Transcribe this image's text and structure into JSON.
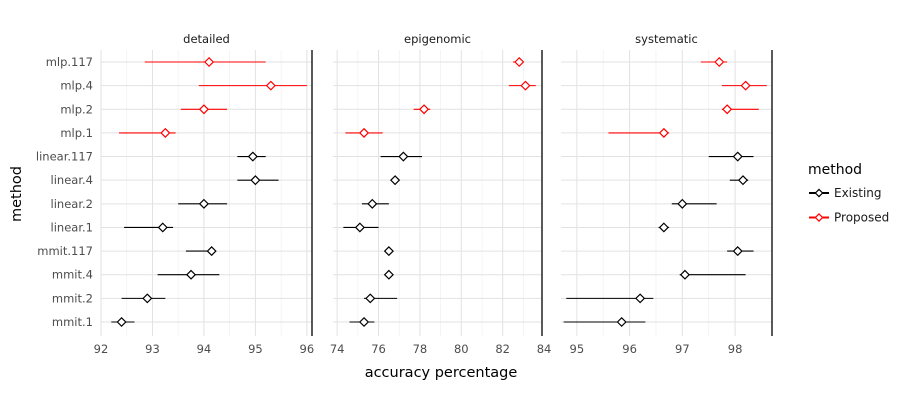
{
  "chart_data": {
    "type": "scatter",
    "title": "",
    "xlabel": "accuracy percentage",
    "ylabel": "method",
    "grid": true,
    "legend": {
      "title": "method",
      "placement": "right",
      "entries": [
        {
          "name": "Existing",
          "color": "#000000"
        },
        {
          "name": "Proposed",
          "color": "#ff0000"
        }
      ]
    },
    "categories": [
      "mmit.1",
      "mmit.2",
      "mmit.4",
      "mmit.117",
      "linear.1",
      "linear.2",
      "linear.4",
      "linear.117",
      "mlp.1",
      "mlp.2",
      "mlp.4",
      "mlp.117"
    ],
    "panels": [
      {
        "name": "detailed",
        "xlim": [
          92,
          96.1
        ],
        "xticks": [
          92,
          93,
          94,
          95,
          96
        ],
        "ref_line": 96.1,
        "points": [
          {
            "category": "mlp.117",
            "group": "Proposed",
            "mean": 94.1,
            "low": 92.85,
            "high": 95.2
          },
          {
            "category": "mlp.4",
            "group": "Proposed",
            "mean": 95.3,
            "low": 93.9,
            "high": 96.0
          },
          {
            "category": "mlp.2",
            "group": "Proposed",
            "mean": 94.0,
            "low": 93.55,
            "high": 94.45
          },
          {
            "category": "mlp.1",
            "group": "Proposed",
            "mean": 93.25,
            "low": 92.35,
            "high": 93.45
          },
          {
            "category": "linear.117",
            "group": "Existing",
            "mean": 94.95,
            "low": 94.65,
            "high": 95.2
          },
          {
            "category": "linear.4",
            "group": "Existing",
            "mean": 95.0,
            "low": 94.65,
            "high": 95.45
          },
          {
            "category": "linear.2",
            "group": "Existing",
            "mean": 94.0,
            "low": 93.5,
            "high": 94.45
          },
          {
            "category": "linear.1",
            "group": "Existing",
            "mean": 93.2,
            "low": 92.45,
            "high": 93.4
          },
          {
            "category": "mmit.117",
            "group": "Existing",
            "mean": 94.15,
            "low": 93.65,
            "high": 94.2
          },
          {
            "category": "mmit.4",
            "group": "Existing",
            "mean": 93.75,
            "low": 93.1,
            "high": 94.3
          },
          {
            "category": "mmit.2",
            "group": "Existing",
            "mean": 92.9,
            "low": 92.4,
            "high": 93.25
          },
          {
            "category": "mmit.1",
            "group": "Existing",
            "mean": 92.4,
            "low": 92.2,
            "high": 92.65
          }
        ]
      },
      {
        "name": "epigenomic",
        "xlim": [
          73.8,
          83.9
        ],
        "xticks": [
          74,
          76,
          78,
          80,
          82,
          84
        ],
        "ref_line": 83.9,
        "points": [
          {
            "category": "mlp.117",
            "group": "Proposed",
            "mean": 82.8,
            "low": 82.5,
            "high": 83.0
          },
          {
            "category": "mlp.4",
            "group": "Proposed",
            "mean": 83.1,
            "low": 82.3,
            "high": 83.6
          },
          {
            "category": "mlp.2",
            "group": "Proposed",
            "mean": 78.2,
            "low": 77.7,
            "high": 78.5
          },
          {
            "category": "mlp.1",
            "group": "Proposed",
            "mean": 75.3,
            "low": 74.4,
            "high": 76.2
          },
          {
            "category": "linear.117",
            "group": "Existing",
            "mean": 77.2,
            "low": 76.1,
            "high": 78.1
          },
          {
            "category": "linear.4",
            "group": "Existing",
            "mean": 76.8,
            "low": 76.7,
            "high": 77.0
          },
          {
            "category": "linear.2",
            "group": "Existing",
            "mean": 75.7,
            "low": 75.2,
            "high": 76.5
          },
          {
            "category": "linear.1",
            "group": "Existing",
            "mean": 75.1,
            "low": 74.3,
            "high": 76.0
          },
          {
            "category": "mmit.117",
            "group": "Existing",
            "mean": 76.5,
            "low": 76.3,
            "high": 76.7
          },
          {
            "category": "mmit.4",
            "group": "Existing",
            "mean": 76.5,
            "low": 76.3,
            "high": 76.7
          },
          {
            "category": "mmit.2",
            "group": "Existing",
            "mean": 75.6,
            "low": 75.3,
            "high": 76.9
          },
          {
            "category": "mmit.1",
            "group": "Existing",
            "mean": 75.3,
            "low": 74.6,
            "high": 75.8
          }
        ]
      },
      {
        "name": "systematic",
        "xlim": [
          94.7,
          98.7
        ],
        "xticks": [
          95,
          96,
          97,
          98
        ],
        "ref_line": 98.7,
        "points": [
          {
            "category": "mlp.117",
            "group": "Proposed",
            "mean": 97.7,
            "low": 97.35,
            "high": 97.85
          },
          {
            "category": "mlp.4",
            "group": "Proposed",
            "mean": 98.2,
            "low": 97.75,
            "high": 98.6
          },
          {
            "category": "mlp.2",
            "group": "Proposed",
            "mean": 97.85,
            "low": 97.75,
            "high": 98.45
          },
          {
            "category": "mlp.1",
            "group": "Proposed",
            "mean": 96.65,
            "low": 95.6,
            "high": 96.75
          },
          {
            "category": "linear.117",
            "group": "Existing",
            "mean": 98.05,
            "low": 97.5,
            "high": 98.35
          },
          {
            "category": "linear.4",
            "group": "Existing",
            "mean": 98.15,
            "low": 97.9,
            "high": 98.25
          },
          {
            "category": "linear.2",
            "group": "Existing",
            "mean": 97.0,
            "low": 96.8,
            "high": 97.65
          },
          {
            "category": "linear.1",
            "group": "Existing",
            "mean": 96.65,
            "low": 96.55,
            "high": 96.75
          },
          {
            "category": "mmit.117",
            "group": "Existing",
            "mean": 98.05,
            "low": 97.85,
            "high": 98.35
          },
          {
            "category": "mmit.4",
            "group": "Existing",
            "mean": 97.05,
            "low": 96.95,
            "high": 98.2
          },
          {
            "category": "mmit.2",
            "group": "Existing",
            "mean": 96.2,
            "low": 94.8,
            "high": 96.45
          },
          {
            "category": "mmit.1",
            "group": "Existing",
            "mean": 95.85,
            "low": 94.75,
            "high": 96.3
          }
        ]
      }
    ]
  }
}
